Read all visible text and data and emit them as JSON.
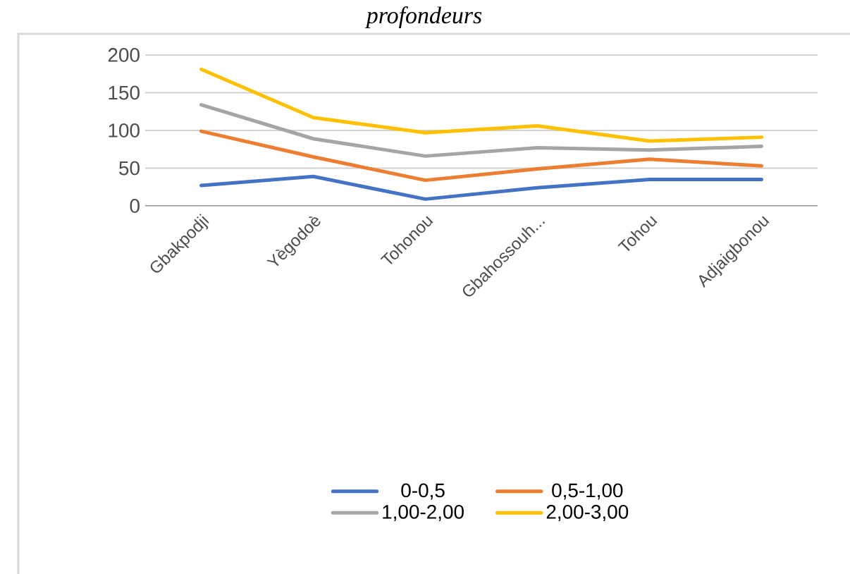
{
  "chart_data": {
    "type": "line",
    "title": "*profondeurs*",
    "categories": [
      "Gbakpodji",
      "Yègodoè",
      "Tohonou",
      "Gbahossouh...",
      "Tohou",
      "Adjaigbonou"
    ],
    "series": [
      {
        "name": "0-0,5",
        "color": "#4472c4",
        "values": [
          27,
          39,
          9,
          24,
          35,
          35
        ]
      },
      {
        "name": "0,5-1,00",
        "color": "#ed7d31",
        "values": [
          99,
          65,
          34,
          49,
          62,
          53
        ]
      },
      {
        "name": "1,00-2,00",
        "color": "#a5a5a5",
        "values": [
          134,
          89,
          66,
          77,
          74,
          79
        ]
      },
      {
        "name": "2,00-3,00",
        "color": "#ffc000",
        "values": [
          181,
          117,
          97,
          106,
          86,
          91
        ]
      }
    ],
    "ylim": [
      0,
      200
    ],
    "yticks": [
      0,
      50,
      100,
      150,
      200
    ],
    "grid": "y",
    "legend": "bottom",
    "marker": "none",
    "line_style": "solid"
  }
}
